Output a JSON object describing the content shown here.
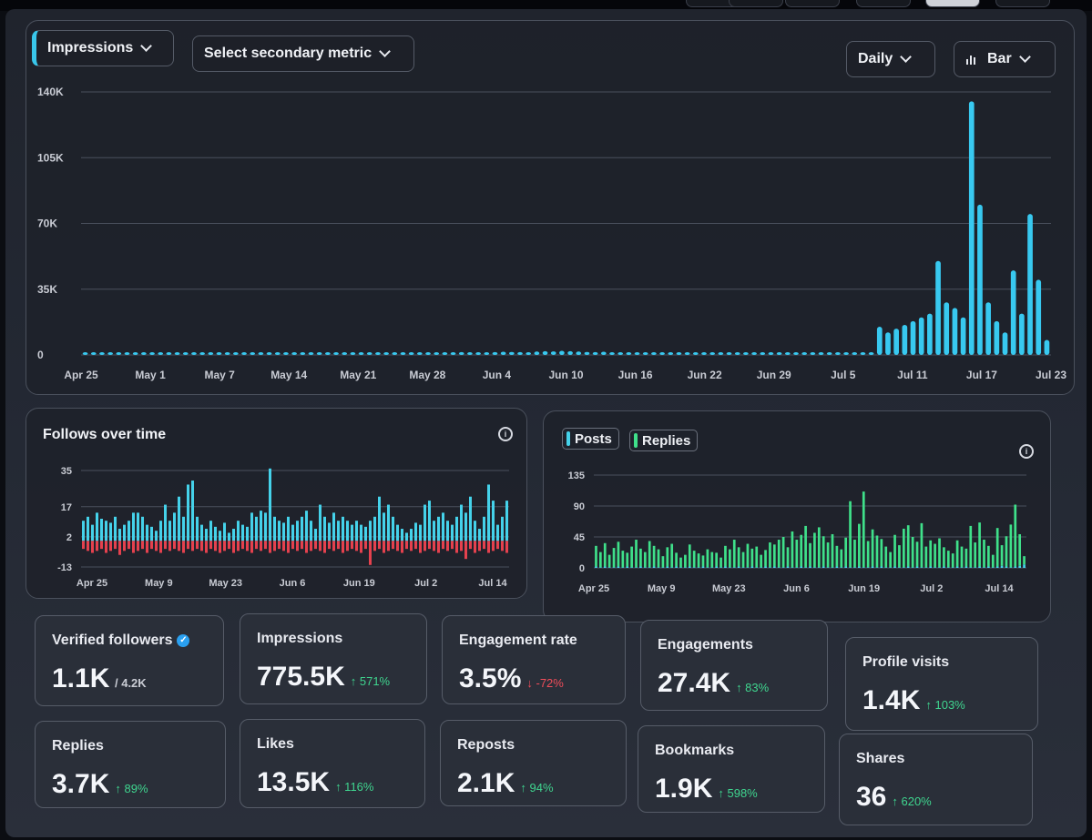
{
  "main_chart": {
    "primary_metric": "Impressions",
    "secondary_metric": "Select secondary metric",
    "interval": "Daily",
    "chart_type": "Bar"
  },
  "follows_card": {
    "title": "Follows over time",
    "info": "i"
  },
  "posts_card": {
    "legend": [
      "Posts",
      "Replies"
    ],
    "info": "i"
  },
  "chart_data": [
    {
      "type": "bar",
      "title": "Impressions",
      "yticks": [
        "140K",
        "105K",
        "70K",
        "35K",
        "0"
      ],
      "ylim": [
        0,
        140000
      ],
      "xticks": [
        "Apr 25",
        "May 1",
        "May 7",
        "May 14",
        "May 21",
        "May 28",
        "Jun 4",
        "Jun 10",
        "Jun 16",
        "Jun 22",
        "Jun 29",
        "Jul 5",
        "Jul 11",
        "Jul 17",
        "Jul 23"
      ],
      "grid": true,
      "color": "#38c9f0",
      "values": [
        800,
        900,
        1000,
        900,
        1100,
        1200,
        1000,
        900,
        1100,
        1000,
        900,
        1200,
        1300,
        1100,
        1000,
        900,
        1100,
        1000,
        900,
        1200,
        1000,
        900,
        1100,
        1000,
        900,
        1100,
        1000,
        1200,
        1100,
        1000,
        900,
        1000,
        1100,
        1300,
        1200,
        1000,
        1100,
        1200,
        1000,
        900,
        1100,
        1300,
        1200,
        1100,
        1300,
        1500,
        1400,
        1300,
        1400,
        1500,
        1700,
        1600,
        1500,
        1400,
        1800,
        2000,
        1900,
        2200,
        2000,
        1800,
        1600,
        1500,
        1700,
        1400,
        1300,
        1200,
        1100,
        1400,
        1300,
        1200,
        1100,
        1200,
        1300,
        1400,
        1200,
        1100,
        1000,
        1200,
        1100,
        1000,
        900,
        1000,
        1100,
        1000,
        900,
        1000,
        900,
        1100,
        1000,
        900,
        1000,
        900,
        900,
        1000,
        1100,
        15000,
        12000,
        14000,
        16000,
        18000,
        20000,
        22000,
        50000,
        28000,
        25000,
        20000,
        135000,
        80000,
        28000,
        18000,
        12000,
        45000,
        22000,
        75000,
        40000,
        8000
      ]
    },
    {
      "type": "bar",
      "title": "Follows over time",
      "yticks": [
        "35",
        "17",
        "2",
        "-13"
      ],
      "ylim": [
        -13,
        35
      ],
      "xticks": [
        "Apr 25",
        "May 9",
        "May 23",
        "Jun 6",
        "Jun 19",
        "Jul 2",
        "Jul 14"
      ],
      "series": [
        {
          "color": "#45d2ea",
          "values": [
            10,
            12,
            8,
            14,
            11,
            10,
            9,
            12,
            6,
            8,
            10,
            14,
            14,
            12,
            8,
            7,
            5,
            10,
            18,
            10,
            14,
            22,
            12,
            28,
            30,
            12,
            8,
            6,
            10,
            7,
            5,
            9,
            4,
            6,
            10,
            8,
            7,
            14,
            12,
            15,
            14,
            36,
            12,
            10,
            9,
            12,
            8,
            10,
            12,
            15,
            10,
            6,
            18,
            12,
            9,
            14,
            10,
            12,
            10,
            8,
            10,
            8,
            7,
            10,
            12,
            22,
            14,
            18,
            12,
            8,
            6,
            4,
            6,
            9,
            8,
            18,
            20,
            10,
            12,
            14,
            10,
            8,
            12,
            18,
            14,
            22,
            10,
            6,
            12,
            28,
            20,
            8,
            12,
            20
          ]
        },
        {
          "color": "#e5414e",
          "values": [
            -4,
            -5,
            -6,
            -5,
            -4,
            -6,
            -5,
            -4,
            -7,
            -5,
            -4,
            -6,
            -5,
            -4,
            -6,
            -4,
            -5,
            -6,
            -4,
            -5,
            -4,
            -5,
            -6,
            -4,
            -5,
            -4,
            -5,
            -6,
            -4,
            -5,
            -6,
            -5,
            -4,
            -6,
            -5,
            -4,
            -5,
            -6,
            -4,
            -5,
            -4,
            -6,
            -5,
            -4,
            -5,
            -6,
            -4,
            -5,
            -4,
            -6,
            -5,
            -4,
            -5,
            -6,
            -4,
            -5,
            -4,
            -6,
            -5,
            -4,
            -5,
            -6,
            -4,
            -12,
            -5,
            -4,
            -6,
            -5,
            -4,
            -5,
            -6,
            -4,
            -5,
            -4,
            -6,
            -5,
            -4,
            -5,
            -6,
            -4,
            -5,
            -4,
            -6,
            -5,
            -9,
            -4,
            -6,
            -5,
            -4,
            -6,
            -5,
            -4,
            -5,
            -6
          ]
        }
      ]
    },
    {
      "type": "bar",
      "title": "Posts and Replies",
      "yticks": [
        "135",
        "90",
        "45",
        "0"
      ],
      "ylim": [
        0,
        135
      ],
      "xticks": [
        "Apr 25",
        "May 9",
        "May 23",
        "Jun 6",
        "Jun 19",
        "Jul 2",
        "Jul 14"
      ],
      "series": [
        {
          "name": "Posts",
          "color": "#45d2ea",
          "values": [
            2,
            1,
            2,
            1,
            1,
            2,
            1,
            2,
            1,
            1,
            2,
            1,
            1,
            2,
            1,
            1,
            2,
            1,
            2,
            1,
            1,
            2,
            1,
            1,
            2,
            1,
            1,
            2,
            1,
            2,
            1,
            1,
            2,
            1,
            1,
            2,
            1,
            1,
            2,
            1,
            2,
            1,
            1,
            2,
            1,
            1,
            2,
            1,
            2,
            1,
            1,
            2,
            1,
            1,
            2,
            1,
            2,
            1,
            1,
            2,
            1,
            1,
            2,
            1,
            2,
            1,
            1,
            2,
            1,
            1,
            2,
            1,
            2,
            1,
            1,
            2,
            1,
            1,
            2,
            1,
            1,
            2,
            1,
            2,
            1,
            1,
            2,
            1,
            2,
            1,
            2,
            3,
            2,
            1,
            2,
            3,
            5
          ]
        },
        {
          "name": "Replies",
          "color": "#3fe08a",
          "values": [
            30,
            22,
            34,
            18,
            28,
            36,
            24,
            20,
            30,
            40,
            26,
            22,
            38,
            30,
            26,
            16,
            28,
            34,
            20,
            14,
            18,
            32,
            24,
            20,
            16,
            26,
            22,
            20,
            14,
            30,
            26,
            40,
            28,
            22,
            34,
            26,
            30,
            18,
            24,
            36,
            32,
            40,
            44,
            28,
            52,
            40,
            46,
            60,
            34,
            50,
            58,
            44,
            36,
            48,
            30,
            26,
            42,
            96,
            40,
            62,
            110,
            38,
            54,
            46,
            40,
            30,
            22,
            46,
            32,
            56,
            60,
            44,
            36,
            64,
            30,
            38,
            34,
            42,
            28,
            24,
            20,
            38,
            30,
            26,
            60,
            36,
            64,
            40,
            30,
            18,
            56,
            30,
            44,
            62,
            90,
            46,
            12
          ]
        }
      ]
    }
  ],
  "stats": [
    {
      "label": "Verified followers",
      "value": "1.1K",
      "sub": "/ 4.2K",
      "verified_badge": true
    },
    {
      "label": "Impressions",
      "value": "775.5K",
      "change": "↑ 571%",
      "dir": "up"
    },
    {
      "label": "Engagement rate",
      "value": "3.5%",
      "change": "↓ -72%",
      "dir": "down"
    },
    {
      "label": "Engagements",
      "value": "27.4K",
      "change": "↑ 83%",
      "dir": "up"
    },
    {
      "label": "Profile visits",
      "value": "1.4K",
      "change": "↑ 103%",
      "dir": "up"
    },
    {
      "label": "Replies",
      "value": "3.7K",
      "change": "↑ 89%",
      "dir": "up"
    },
    {
      "label": "Likes",
      "value": "13.5K",
      "change": "↑ 116%",
      "dir": "up"
    },
    {
      "label": "Reposts",
      "value": "2.1K",
      "change": "↑ 94%",
      "dir": "up"
    },
    {
      "label": "Bookmarks",
      "value": "1.9K",
      "change": "↑ 598%",
      "dir": "up"
    },
    {
      "label": "Shares",
      "value": "36",
      "change": "↑ 620%",
      "dir": "up"
    }
  ]
}
